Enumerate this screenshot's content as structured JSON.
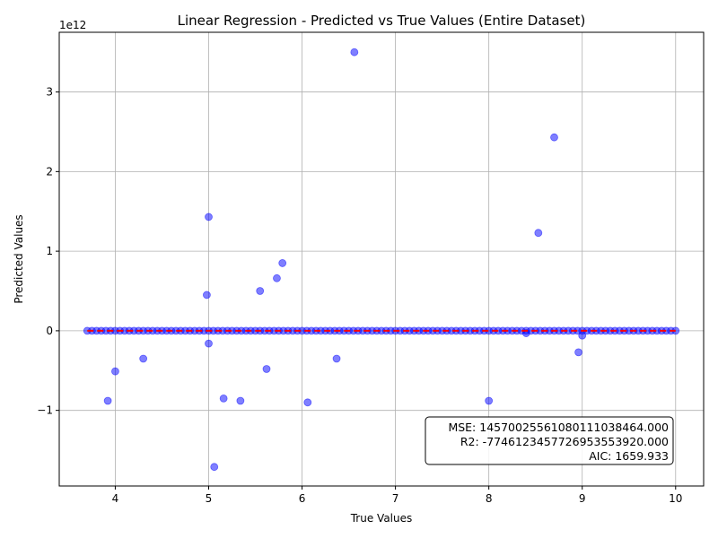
{
  "chart_data": {
    "type": "scatter",
    "title": "Linear Regression - Predicted vs True Values (Entire Dataset)",
    "xlabel": "True Values",
    "ylabel": "Predicted Values",
    "y_scale_label": "1e12",
    "xlim": [
      3.4,
      10.3
    ],
    "ylim": [
      -1.95,
      3.75
    ],
    "x_ticks": [
      4,
      5,
      6,
      7,
      8,
      9,
      10
    ],
    "y_ticks": [
      -1,
      0,
      1,
      2,
      3
    ],
    "y_tick_labels": [
      "−1",
      "0",
      "1",
      "2",
      "3"
    ],
    "grid": true,
    "point_color": "#0000ff",
    "fit_line_color": "#ff0000",
    "fit_line": {
      "x": [
        3.7,
        10.0
      ],
      "y": [
        0,
        0
      ]
    },
    "near_zero_band": {
      "x_start": 3.7,
      "x_end": 10.0,
      "step": 0.05,
      "y": 0
    },
    "points": [
      {
        "x": 6.56,
        "y": 3.5
      },
      {
        "x": 8.7,
        "y": 2.43
      },
      {
        "x": 5.0,
        "y": 1.43
      },
      {
        "x": 8.53,
        "y": 1.23
      },
      {
        "x": 5.79,
        "y": 0.85
      },
      {
        "x": 5.73,
        "y": 0.66
      },
      {
        "x": 5.55,
        "y": 0.5
      },
      {
        "x": 4.98,
        "y": 0.45
      },
      {
        "x": 5.0,
        "y": -0.16
      },
      {
        "x": 9.0,
        "y": -0.06
      },
      {
        "x": 8.4,
        "y": -0.03
      },
      {
        "x": 8.96,
        "y": -0.27
      },
      {
        "x": 4.3,
        "y": -0.35
      },
      {
        "x": 6.37,
        "y": -0.35
      },
      {
        "x": 5.62,
        "y": -0.48
      },
      {
        "x": 4.0,
        "y": -0.51
      },
      {
        "x": 5.16,
        "y": -0.85
      },
      {
        "x": 3.92,
        "y": -0.88
      },
      {
        "x": 5.34,
        "y": -0.88
      },
      {
        "x": 8.0,
        "y": -0.88
      },
      {
        "x": 6.06,
        "y": -0.9
      },
      {
        "x": 5.06,
        "y": -1.71
      }
    ]
  },
  "stats": {
    "mse": "MSE: 14570025561080111038464.000",
    "r2": "R2: -7746123457726953553920.000",
    "aic": "AIC: 1659.933"
  }
}
